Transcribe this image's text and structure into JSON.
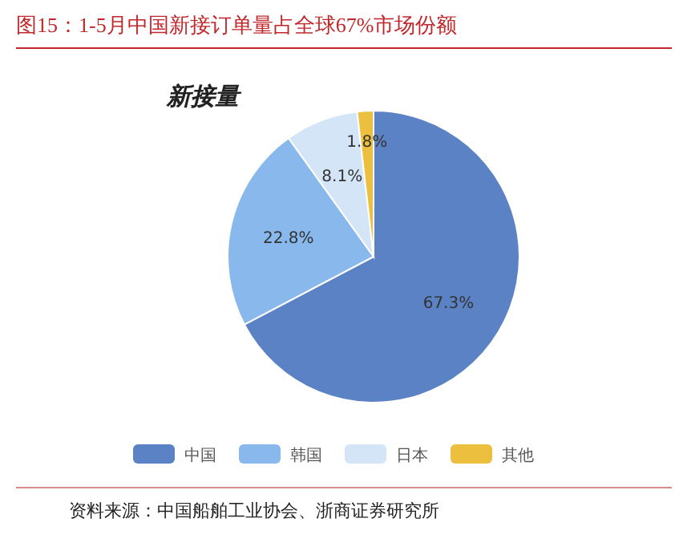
{
  "chart_data": {
    "type": "pie",
    "title": "图15：1-5月中国新接订单量占全球67%市场份额",
    "subtitle": "新接量",
    "categories": [
      "中国",
      "韩国",
      "日本",
      "其他"
    ],
    "values": [
      67.3,
      22.8,
      8.1,
      1.8
    ],
    "colors": [
      "#5b82c4",
      "#88b8ec",
      "#d4e5f8",
      "#ecc03e"
    ],
    "value_labels": [
      "67.3%",
      "22.8%",
      "8.1%",
      "1.8%"
    ],
    "legend": "bottom",
    "annotations": [
      "资料来源：中国船舶工业协会、浙商证券研究所"
    ]
  }
}
